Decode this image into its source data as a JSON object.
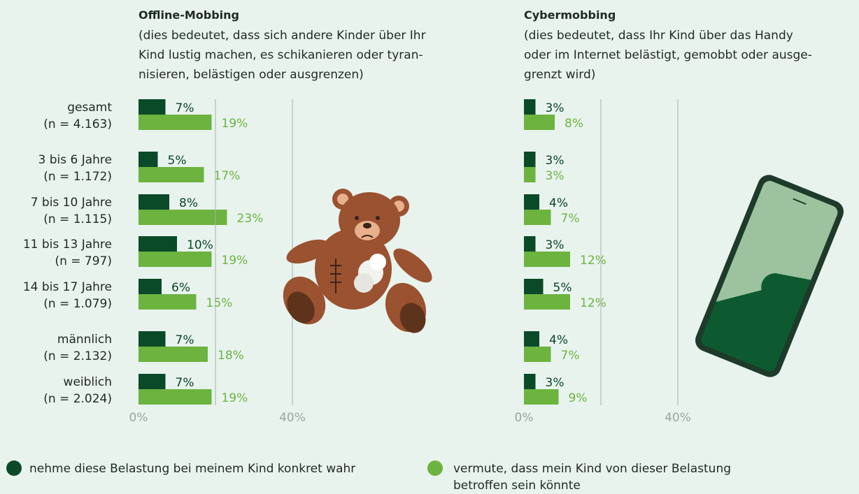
{
  "chart_data": [
    {
      "type": "bar",
      "orientation": "horizontal",
      "title": "Offline-Mobbing",
      "subtitle": [
        "(dies bedeutet, dass sich andere Kinder über Ihr",
        "Kind lustig machen, es schikanieren oder tyran-",
        "nisieren, belästigen oder ausgrenzen)"
      ],
      "categories": [
        "gesamt",
        "3 bis 6 Jahre",
        "7 bis 10 Jahre",
        "11 bis 13 Jahre",
        "14 bis 17 Jahre",
        "männlich",
        "weiblich"
      ],
      "sample_sizes": [
        "(n = 4.163)",
        "(n = 1.172)",
        "(n = 1.115)",
        "(n = 797)",
        "(n = 1.079)",
        "(n = 2.132)",
        "(n = 2.024)"
      ],
      "series": [
        {
          "name": "nehme diese Belastung bei meinem Kind konkret wahr",
          "color": "#0b4a28",
          "values": [
            7,
            5,
            8,
            10,
            6,
            7,
            7
          ],
          "value_labels": [
            "7%",
            "5%",
            "8%",
            "10%",
            "6%",
            "7%",
            "7%"
          ]
        },
        {
          "name": "vermute, dass mein Kind von dieser Belastung betroffen sein könnte",
          "color": "#6db33f",
          "values": [
            19,
            17,
            23,
            19,
            15,
            18,
            19
          ],
          "value_labels": [
            "19%",
            "17%",
            "23%",
            "19%",
            "15%",
            "18%",
            "19%"
          ]
        }
      ],
      "xlim": [
        0,
        40
      ],
      "xticks": [
        {
          "value": 0,
          "label": "0%"
        },
        {
          "value": 40,
          "label": "40%"
        }
      ],
      "grid": [
        20,
        40
      ]
    },
    {
      "type": "bar",
      "orientation": "horizontal",
      "title": "Cybermobbing",
      "subtitle": [
        "(dies bedeutet, dass Ihr Kind über das Handy",
        "oder im Internet belästigt, gemobbt oder ausge-",
        "grenzt wird)"
      ],
      "series": [
        {
          "color": "#0b4a28",
          "values": [
            3,
            3,
            4,
            3,
            5,
            4,
            3
          ],
          "value_labels": [
            "3%",
            "3%",
            "4%",
            "3%",
            "5%",
            "4%",
            "3%"
          ]
        },
        {
          "color": "#6db33f",
          "values": [
            8,
            3,
            7,
            12,
            12,
            7,
            9
          ],
          "value_labels": [
            "8%",
            "3%",
            "7%",
            "12%",
            "12%",
            "7%",
            "9%"
          ]
        }
      ],
      "xlim": [
        0,
        40
      ],
      "xticks": [
        {
          "value": 0,
          "label": "0%"
        },
        {
          "value": 40,
          "label": "40%"
        }
      ],
      "grid": [
        20,
        40
      ]
    }
  ]
}
